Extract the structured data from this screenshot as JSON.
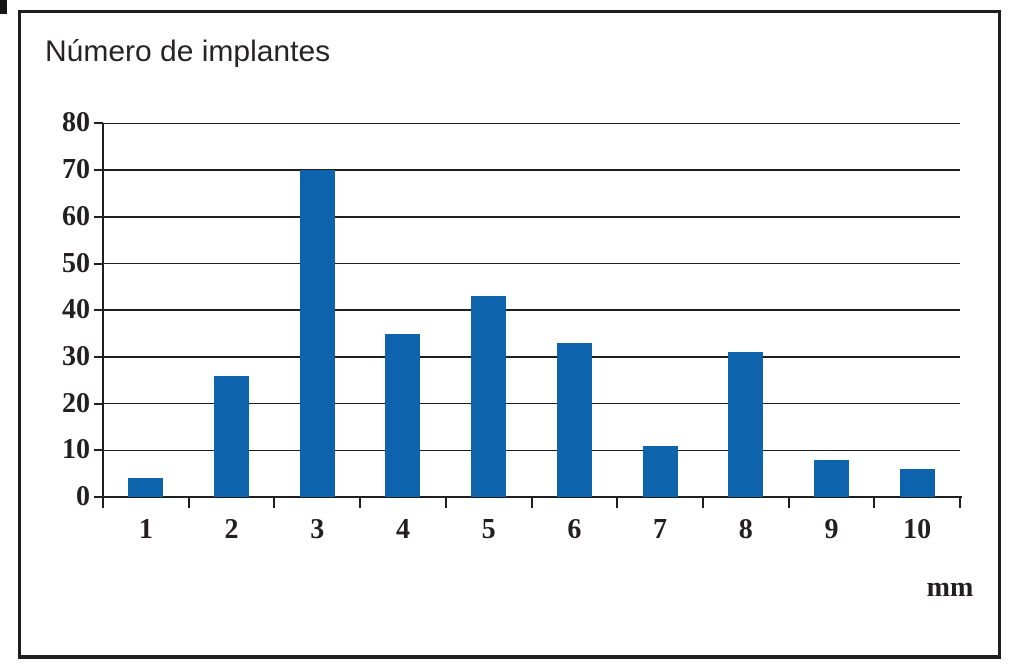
{
  "page": {
    "title": "Número de implantes"
  },
  "colors": {
    "bar": "#0d64ad",
    "line": "#1f1f1f",
    "text": "#231f20",
    "background": "#ffffff"
  },
  "chart_data": {
    "type": "bar",
    "title": "Número de implantes",
    "categories": [
      "1",
      "2",
      "3",
      "4",
      "5",
      "6",
      "7",
      "8",
      "9",
      "10"
    ],
    "values": [
      4,
      26,
      70,
      35,
      43,
      33,
      11,
      31,
      8,
      6
    ],
    "xlabel": "mm",
    "ylabel": "",
    "ylim": [
      0,
      80
    ],
    "ytick_step": 10,
    "ytick_labels": [
      "0",
      "10",
      "20",
      "30",
      "40",
      "50",
      "60",
      "70",
      "80"
    ],
    "grid": true,
    "legend": false,
    "bar_color": "#0d64ad"
  }
}
